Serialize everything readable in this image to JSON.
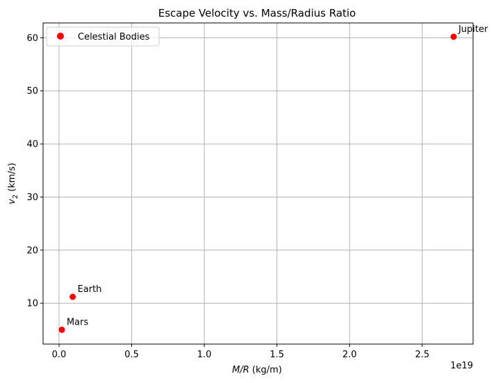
{
  "chart_data": {
    "type": "scatter",
    "title": "Escape Velocity vs. Mass/Radius Ratio",
    "xlabel_italic": "M/R",
    "xlabel_suffix": " (kg/m)",
    "ylabel_prefix": "v",
    "ylabel_subscript": "2",
    "ylabel_suffix": " (km/s)",
    "x_offset_text": "1e19",
    "x_tick_labels": [
      "0.0",
      "0.5",
      "1.0",
      "1.5",
      "2.0",
      "2.5"
    ],
    "y_tick_labels": [
      "10",
      "20",
      "30",
      "40",
      "50",
      "60"
    ],
    "xlim": [
      -0.11,
      2.85
    ],
    "ylim": [
      2.3,
      62.8
    ],
    "grid": true,
    "legend_position": "upper-left",
    "marker_color": "#ff0000",
    "series": [
      {
        "name": "Celestial Bodies",
        "points": [
          {
            "label": "Mars",
            "x": 0.0189,
            "y": 5.0
          },
          {
            "label": "Earth",
            "x": 0.0936,
            "y": 11.2
          },
          {
            "label": "Jupiter",
            "x": 2.7159,
            "y": 60.2
          }
        ]
      }
    ]
  }
}
